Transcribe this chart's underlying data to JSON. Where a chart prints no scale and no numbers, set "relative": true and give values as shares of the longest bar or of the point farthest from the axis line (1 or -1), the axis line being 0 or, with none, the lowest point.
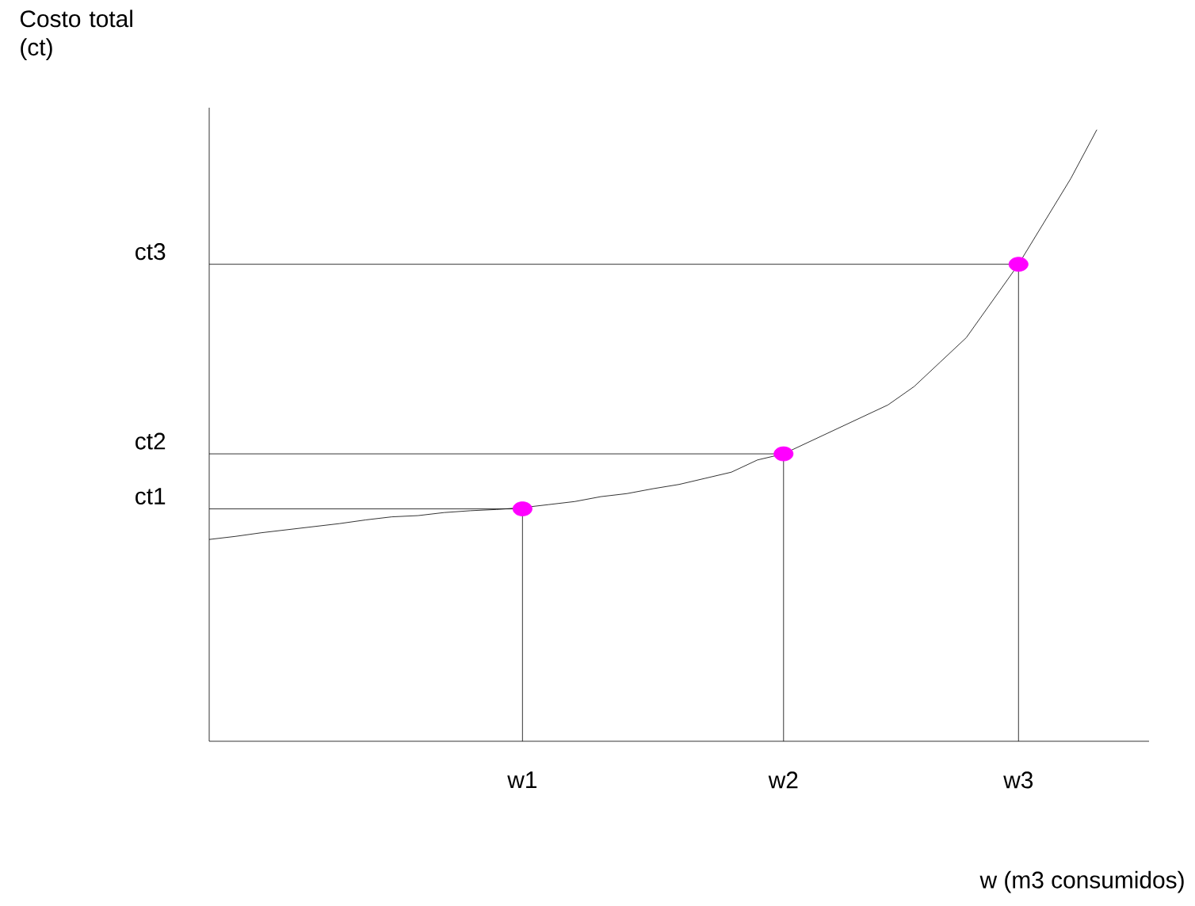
{
  "chart_data": {
    "type": "line",
    "relative": true,
    "xlabel": "w (m3 consumidos)",
    "ylabel": "Costo total (ct)",
    "marker": "none",
    "line_style": "solid",
    "categories": [
      null,
      null,
      null,
      null,
      null,
      null,
      null,
      null,
      null,
      null,
      null,
      null,
      "w1",
      null,
      null,
      null,
      null,
      null,
      null,
      null,
      null,
      null,
      "w2",
      null,
      null,
      null,
      null,
      null,
      null,
      null,
      null,
      "w3",
      null,
      null,
      null
    ],
    "series": [
      {
        "color": "#000000",
        "values": [
          0.33,
          0.335,
          0.341,
          0.346,
          0.351,
          0.356,
          0.362,
          0.367,
          0.369,
          0.374,
          0.377,
          0.379,
          0.382,
          0.387,
          0.392,
          0.4,
          0.405,
          0.413,
          0.42,
          0.43,
          0.44,
          0.46,
          0.47,
          0.49,
          0.51,
          0.53,
          0.55,
          0.58,
          0.62,
          0.66,
          0.72,
          0.78,
          0.85,
          0.92,
          1
        ]
      },
      {
        "type": "scatter",
        "color": "#ff00ff",
        "marker": "circle",
        "values": [
          null,
          null,
          null,
          null,
          null,
          null,
          null,
          null,
          null,
          null,
          null,
          null,
          0.38,
          null,
          null,
          null,
          null,
          null,
          null,
          null,
          null,
          null,
          0.47,
          null,
          null,
          null,
          null,
          null,
          null,
          null,
          null,
          0.78,
          null,
          null,
          null
        ]
      }
    ],
    "annotations": [
      "ct1",
      "ct2",
      "ct3"
    ]
  }
}
